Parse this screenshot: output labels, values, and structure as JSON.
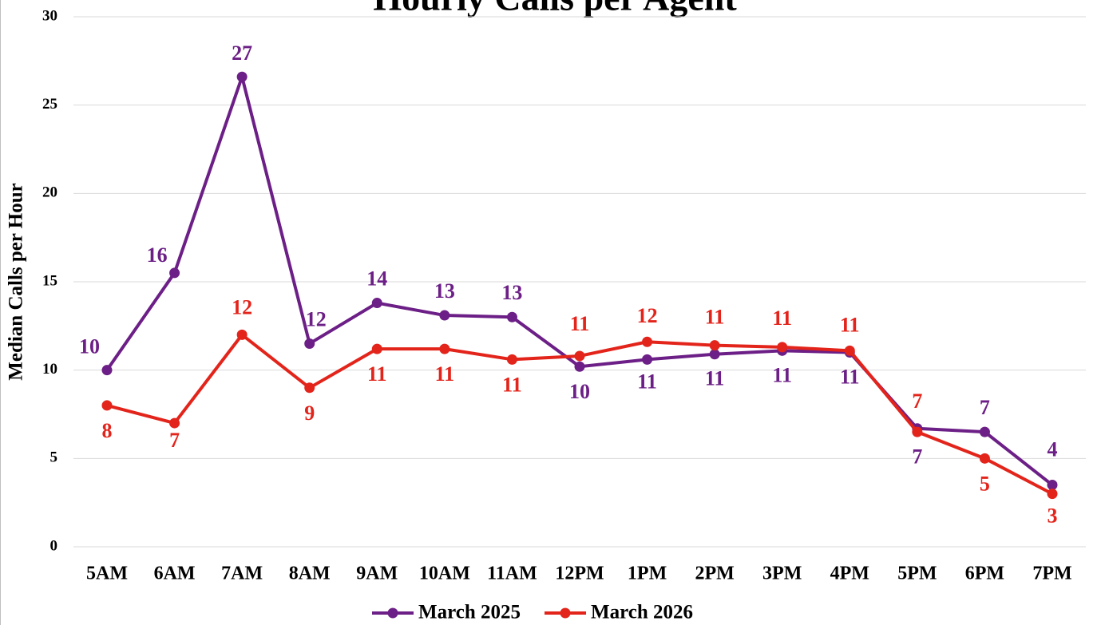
{
  "chart_data": {
    "type": "line",
    "title": "Hourly Calls per Agent",
    "y_label": "Median Calls per Hour",
    "categories": [
      "5AM",
      "6AM",
      "7AM",
      "8AM",
      "9AM",
      "10AM",
      "11AM",
      "12PM",
      "1PM",
      "2PM",
      "3PM",
      "4PM",
      "5PM",
      "6PM",
      "7PM"
    ],
    "series": [
      {
        "name": "March 2025",
        "color": "#6c1f86",
        "values": [
          10,
          15.5,
          26.6,
          11.5,
          13.8,
          13.1,
          13.0,
          10.2,
          10.6,
          10.9,
          11.1,
          11.0,
          6.7,
          6.5,
          3.5
        ],
        "value_labels": [
          "10",
          "16",
          "27",
          "12",
          "14",
          "13",
          "13",
          "10",
          "11",
          "11",
          "11",
          "11",
          "7",
          "7",
          "4"
        ]
      },
      {
        "name": "March 2026",
        "color": "#e3241b",
        "values": [
          8,
          7,
          12,
          9,
          11.2,
          11.2,
          10.6,
          10.8,
          11.6,
          11.4,
          11.3,
          11.1,
          6.5,
          5,
          3
        ],
        "value_labels": [
          "8",
          "7",
          "12",
          "9",
          "11",
          "11",
          "11",
          "11",
          "12",
          "11",
          "11",
          "11",
          "7",
          "5",
          "3"
        ]
      }
    ],
    "ylim": [
      0,
      30
    ],
    "yticks": [
      0,
      5,
      10,
      15,
      20,
      25,
      30
    ],
    "grid": true,
    "legend": "bottom"
  }
}
